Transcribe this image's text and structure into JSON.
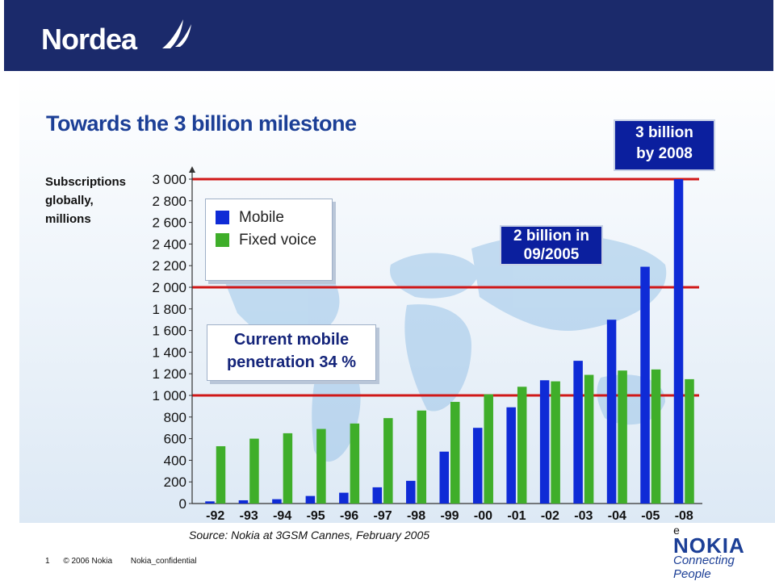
{
  "header": {
    "brand": "Nordea"
  },
  "slide": {
    "title": "Towards the 3 billion milestone",
    "source": "Source: Nokia at 3GSM Cannes, February 2005",
    "callouts": {
      "three_billion": "3 billion\nby 2008",
      "two_billion": "2 billion in\n09/2005",
      "penetration": "Current mobile\npenetration 34 %"
    }
  },
  "footer": {
    "page": "1",
    "copyright": "© 2006 Nokia",
    "classification": "Nokia_confidential",
    "partner_logo": "NOKIA",
    "partner_tagline": "Connecting People",
    "x_note": "e"
  },
  "colors": {
    "header_bg": "#1b2a6b",
    "mobile": "#0f2bd6",
    "fixed": "#3fae2a",
    "milestone_line": "#d01818",
    "title": "#1c3f96"
  },
  "chart_data": {
    "type": "bar",
    "title": "Towards the 3 billion milestone",
    "ylabel": "Subscriptions\nglobally,\nmillions",
    "categories": [
      "-92",
      "-93",
      "-94",
      "-95",
      "-96",
      "-97",
      "-98",
      "-99",
      "-00",
      "-01",
      "-02",
      "-03",
      "-04",
      "-05",
      "-08"
    ],
    "series": [
      {
        "name": "Mobile",
        "values": [
          20,
          30,
          40,
          70,
          100,
          150,
          210,
          480,
          700,
          890,
          1140,
          1320,
          1700,
          2190,
          3000
        ]
      },
      {
        "name": "Fixed voice",
        "values": [
          530,
          600,
          650,
          690,
          740,
          790,
          860,
          940,
          1010,
          1080,
          1130,
          1190,
          1230,
          1240,
          1150
        ]
      }
    ],
    "yticks": [
      "0",
      "200",
      "400",
      "600",
      "800",
      "1 000",
      "1 200",
      "1 400",
      "1 600",
      "1 800",
      "2 000",
      "2 200",
      "2 400",
      "2 600",
      "2 800",
      "3 000"
    ],
    "ylim": [
      0,
      3000
    ],
    "reference_lines": [
      1000,
      2000,
      3000
    ],
    "legend": [
      "Mobile",
      "Fixed voice"
    ],
    "legend_position": "top-left",
    "grid": false
  }
}
